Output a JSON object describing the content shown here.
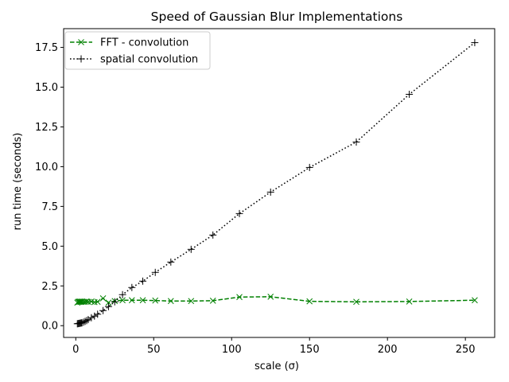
{
  "chart_data": {
    "type": "line",
    "title": "Speed of Gaussian Blur Implementations",
    "xlabel": "scale (σ)",
    "ylabel": "run time (seconds)",
    "xlim": [
      -7.8,
      268.8
    ],
    "ylim": [
      -0.74,
      18.68
    ],
    "xticks": [
      0,
      50,
      100,
      150,
      200,
      250
    ],
    "xtick_labels": [
      "0",
      "50",
      "100",
      "150",
      "200",
      "250"
    ],
    "yticks": [
      0.0,
      2.5,
      5.0,
      7.5,
      10.0,
      12.5,
      15.0,
      17.5
    ],
    "ytick_labels": [
      "0.0",
      "2.5",
      "5.0",
      "7.5",
      "10.0",
      "12.5",
      "15.0",
      "17.5"
    ],
    "grid": false,
    "legend_position": "top-left",
    "series": [
      {
        "name": "FFT - convolution",
        "color": "#008000",
        "linestyle": "dashed",
        "marker": "x",
        "x": [
          1,
          1.5,
          2,
          2.5,
          3,
          3.5,
          4,
          5,
          6,
          7,
          8,
          10,
          12,
          14,
          17.5,
          21,
          25,
          30,
          36,
          43,
          51,
          61,
          74,
          88,
          105,
          125,
          150,
          180,
          214,
          256
        ],
        "y": [
          1.45,
          1.5,
          1.5,
          1.52,
          1.5,
          1.5,
          1.52,
          1.5,
          1.5,
          1.52,
          1.5,
          1.52,
          1.48,
          1.5,
          1.72,
          1.45,
          1.55,
          1.6,
          1.6,
          1.6,
          1.58,
          1.55,
          1.55,
          1.57,
          1.8,
          1.82,
          1.53,
          1.5,
          1.52,
          1.6
        ]
      },
      {
        "name": "spatial convolution",
        "color": "#000000",
        "linestyle": "dotted",
        "marker": "+",
        "x": [
          1,
          1.5,
          2,
          2.5,
          3,
          3.5,
          4,
          5,
          6,
          7,
          8,
          10,
          12,
          14,
          17.5,
          21,
          25,
          30,
          36,
          43,
          51,
          61,
          74,
          88,
          105,
          125,
          150,
          180,
          214,
          256
        ],
        "y": [
          0.12,
          0.13,
          0.14,
          0.15,
          0.16,
          0.17,
          0.18,
          0.22,
          0.27,
          0.32,
          0.38,
          0.5,
          0.6,
          0.72,
          0.95,
          1.2,
          1.5,
          1.95,
          2.4,
          2.8,
          3.35,
          4.0,
          4.8,
          5.7,
          7.05,
          8.4,
          9.95,
          11.55,
          14.55,
          17.8
        ]
      }
    ]
  }
}
